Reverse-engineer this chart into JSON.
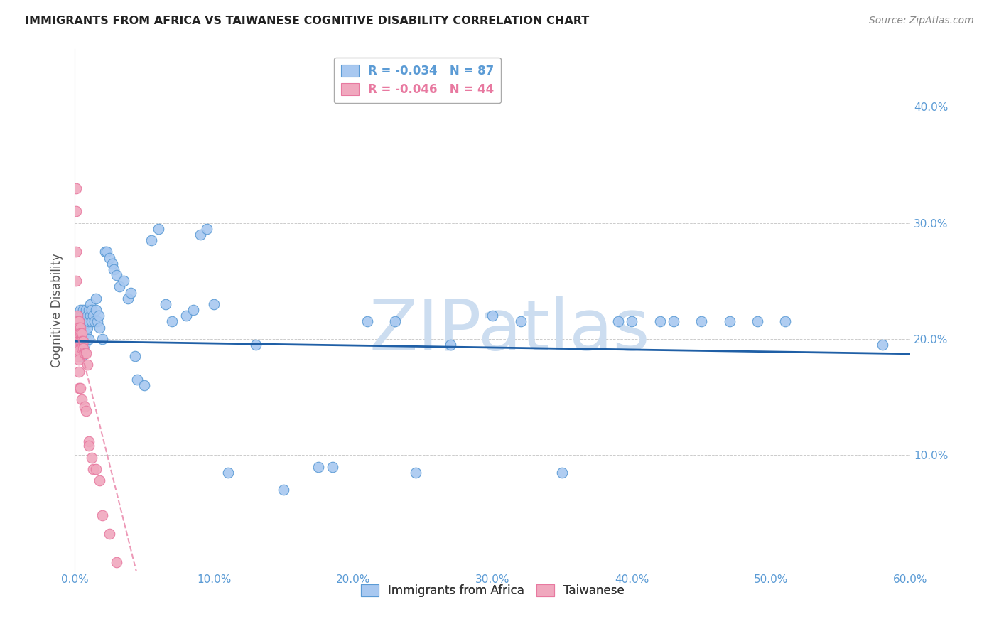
{
  "title": "IMMIGRANTS FROM AFRICA VS TAIWANESE COGNITIVE DISABILITY CORRELATION CHART",
  "source": "Source: ZipAtlas.com",
  "ylabel": "Cognitive Disability",
  "xlim": [
    0.0,
    0.6
  ],
  "ylim": [
    0.0,
    0.45
  ],
  "xticks": [
    0.0,
    0.1,
    0.2,
    0.3,
    0.4,
    0.5,
    0.6
  ],
  "yticks": [
    0.1,
    0.2,
    0.3,
    0.4
  ],
  "ytick_labels_right": [
    "10.0%",
    "20.0%",
    "30.0%",
    "40.0%"
  ],
  "xtick_labels": [
    "0.0%",
    "10.0%",
    "20.0%",
    "30.0%",
    "40.0%",
    "50.0%",
    "60.0%"
  ],
  "legend_label_blue": "R = -0.034   N = 87",
  "legend_label_pink": "R = -0.046   N = 44",
  "legend_labels_bottom": [
    "Immigrants from Africa",
    "Taiwanese"
  ],
  "blue_color": "#5b9bd5",
  "pink_color": "#e879a0",
  "scatter_blue_face": "#a8c8f0",
  "scatter_pink_face": "#f0a8be",
  "trendline_blue": "#1f5fa6",
  "trendline_pink": "#e879a0",
  "grid_color": "#cccccc",
  "watermark_text": "ZIPatlas",
  "watermark_color": "#ccddf0",
  "blue_points_x": [
    0.002,
    0.002,
    0.003,
    0.003,
    0.003,
    0.003,
    0.004,
    0.004,
    0.004,
    0.004,
    0.004,
    0.005,
    0.005,
    0.005,
    0.005,
    0.005,
    0.005,
    0.006,
    0.006,
    0.006,
    0.006,
    0.007,
    0.007,
    0.007,
    0.008,
    0.008,
    0.008,
    0.009,
    0.009,
    0.01,
    0.01,
    0.01,
    0.011,
    0.011,
    0.012,
    0.012,
    0.013,
    0.014,
    0.015,
    0.015,
    0.016,
    0.017,
    0.018,
    0.02,
    0.022,
    0.023,
    0.025,
    0.027,
    0.028,
    0.03,
    0.032,
    0.035,
    0.038,
    0.04,
    0.043,
    0.045,
    0.05,
    0.055,
    0.06,
    0.065,
    0.07,
    0.08,
    0.085,
    0.09,
    0.095,
    0.1,
    0.11,
    0.13,
    0.15,
    0.175,
    0.185,
    0.21,
    0.23,
    0.245,
    0.27,
    0.3,
    0.32,
    0.35,
    0.39,
    0.4,
    0.42,
    0.43,
    0.45,
    0.47,
    0.49,
    0.51,
    0.58
  ],
  "blue_points_y": [
    0.21,
    0.22,
    0.215,
    0.21,
    0.205,
    0.2,
    0.225,
    0.22,
    0.215,
    0.21,
    0.2,
    0.22,
    0.215,
    0.21,
    0.205,
    0.195,
    0.185,
    0.225,
    0.215,
    0.21,
    0.205,
    0.22,
    0.215,
    0.195,
    0.225,
    0.215,
    0.205,
    0.22,
    0.21,
    0.225,
    0.215,
    0.2,
    0.23,
    0.22,
    0.225,
    0.215,
    0.22,
    0.215,
    0.235,
    0.225,
    0.215,
    0.22,
    0.21,
    0.2,
    0.275,
    0.275,
    0.27,
    0.265,
    0.26,
    0.255,
    0.245,
    0.25,
    0.235,
    0.24,
    0.185,
    0.165,
    0.16,
    0.285,
    0.295,
    0.23,
    0.215,
    0.22,
    0.225,
    0.29,
    0.295,
    0.23,
    0.085,
    0.195,
    0.07,
    0.09,
    0.09,
    0.215,
    0.215,
    0.085,
    0.195,
    0.22,
    0.215,
    0.085,
    0.215,
    0.215,
    0.215,
    0.215,
    0.215,
    0.215,
    0.215,
    0.215,
    0.195
  ],
  "pink_points_x": [
    0.001,
    0.001,
    0.001,
    0.001,
    0.001,
    0.002,
    0.002,
    0.002,
    0.002,
    0.002,
    0.002,
    0.002,
    0.003,
    0.003,
    0.003,
    0.003,
    0.003,
    0.003,
    0.003,
    0.003,
    0.004,
    0.004,
    0.004,
    0.004,
    0.005,
    0.005,
    0.005,
    0.005,
    0.006,
    0.006,
    0.007,
    0.007,
    0.008,
    0.008,
    0.009,
    0.01,
    0.01,
    0.012,
    0.013,
    0.015,
    0.018,
    0.02,
    0.025,
    0.03
  ],
  "pink_points_y": [
    0.33,
    0.31,
    0.275,
    0.25,
    0.2,
    0.22,
    0.215,
    0.21,
    0.205,
    0.198,
    0.192,
    0.185,
    0.215,
    0.21,
    0.205,
    0.198,
    0.19,
    0.182,
    0.172,
    0.158,
    0.21,
    0.205,
    0.198,
    0.158,
    0.205,
    0.198,
    0.192,
    0.148,
    0.198,
    0.192,
    0.188,
    0.142,
    0.188,
    0.138,
    0.178,
    0.112,
    0.108,
    0.098,
    0.088,
    0.088,
    0.078,
    0.048,
    0.032,
    0.008
  ]
}
